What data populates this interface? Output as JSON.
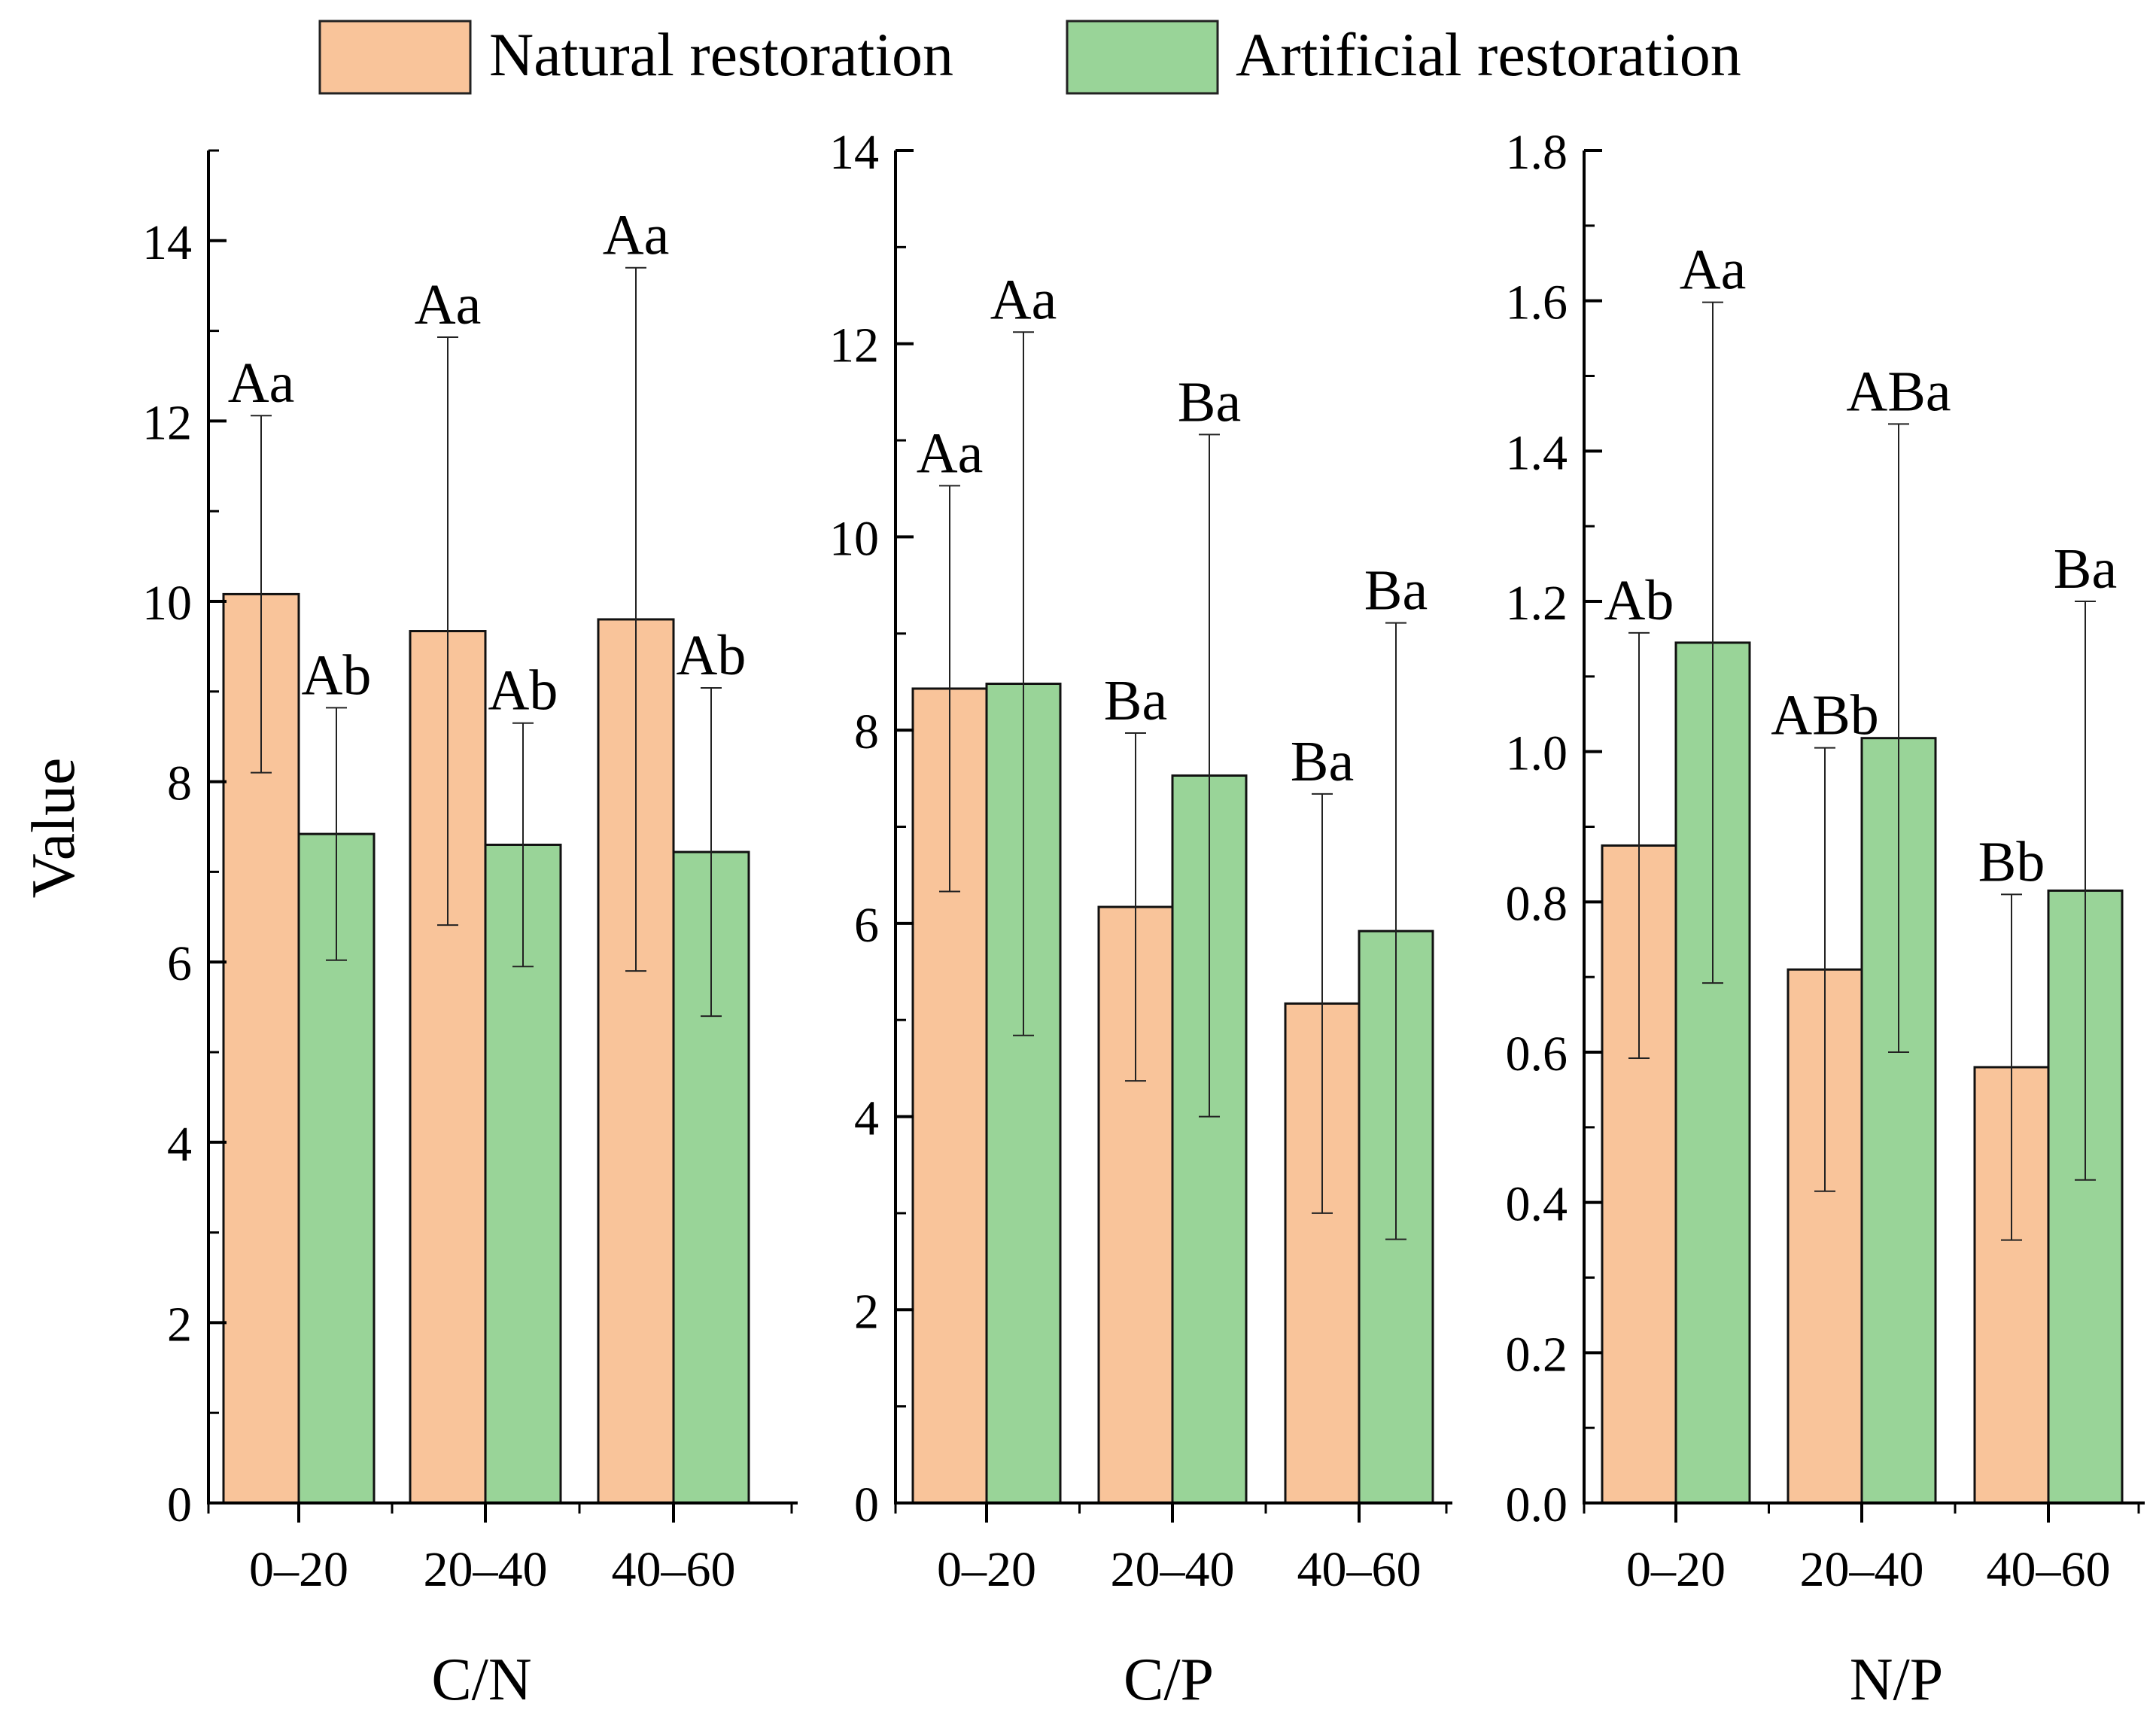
{
  "legend": {
    "items": [
      {
        "label": "Natural restoration",
        "color": "#F9C49A"
      },
      {
        "label": "Artificial restoration",
        "color": "#99D498"
      }
    ]
  },
  "ylabel": "Value",
  "chart_data": [
    {
      "type": "bar",
      "xlabel": "C/N",
      "ylabel": "Value",
      "categories": [
        "0–20",
        "20–40",
        "40–60"
      ],
      "ylim": [
        0,
        15
      ],
      "yticks": [
        0,
        2,
        4,
        6,
        8,
        10,
        12,
        14
      ],
      "ytick_labels": [
        "0",
        "2",
        "4",
        "6",
        "8",
        "10",
        "12",
        "14"
      ],
      "series": [
        {
          "name": "Natural restoration",
          "values": [
            10.08,
            9.67,
            9.8
          ],
          "errors": [
            1.98,
            3.26,
            3.9
          ],
          "labels": [
            "Aa",
            "Aa",
            "Aa"
          ]
        },
        {
          "name": "Artificial restoration",
          "values": [
            7.42,
            7.3,
            7.22
          ],
          "errors": [
            1.4,
            1.35,
            1.82
          ],
          "labels": [
            "Ab",
            "Ab",
            "Ab"
          ]
        }
      ]
    },
    {
      "type": "bar",
      "xlabel": "C/P",
      "categories": [
        "0–20",
        "20–40",
        "40–60"
      ],
      "ylim": [
        0,
        14
      ],
      "yticks": [
        0,
        2,
        4,
        6,
        8,
        10,
        12,
        14
      ],
      "ytick_labels": [
        "0",
        "2",
        "4",
        "6",
        "8",
        "10",
        "12",
        "14"
      ],
      "series": [
        {
          "name": "Natural restoration",
          "values": [
            8.43,
            6.17,
            5.17
          ],
          "errors": [
            2.1,
            1.8,
            2.17
          ],
          "labels": [
            "Aa",
            "Ba",
            "Ba"
          ]
        },
        {
          "name": "Artificial restoration",
          "values": [
            8.48,
            7.53,
            5.92
          ],
          "errors": [
            3.64,
            3.53,
            3.19
          ],
          "labels": [
            "Aa",
            "Ba",
            "Ba"
          ]
        }
      ]
    },
    {
      "type": "bar",
      "xlabel": "N/P",
      "categories": [
        "0–20",
        "20–40",
        "40–60"
      ],
      "ylim": [
        0,
        1.8
      ],
      "yticks": [
        0,
        0.2,
        0.4,
        0.6,
        0.8,
        1.0,
        1.2,
        1.4,
        1.6,
        1.8
      ],
      "ytick_labels": [
        "0.0",
        "0.2",
        "0.4",
        "0.6",
        "0.8",
        "1.0",
        "1.2",
        "1.4",
        "1.6",
        "1.8"
      ],
      "series": [
        {
          "name": "Natural restoration",
          "values": [
            0.875,
            0.71,
            0.58
          ],
          "errors": [
            0.283,
            0.295,
            0.23
          ],
          "labels": [
            "Ab",
            "ABb",
            "Bb"
          ]
        },
        {
          "name": "Artificial restoration",
          "values": [
            1.145,
            1.018,
            0.815
          ],
          "errors": [
            0.453,
            0.418,
            0.385
          ],
          "labels": [
            "Aa",
            "ABa",
            "Ba"
          ]
        }
      ]
    }
  ]
}
